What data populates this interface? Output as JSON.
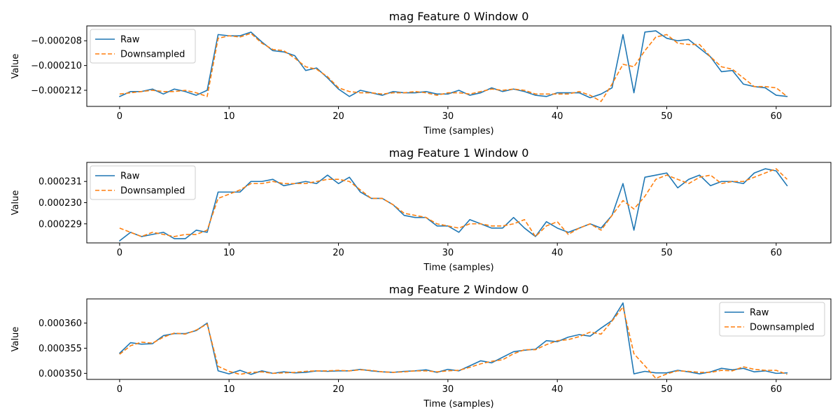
{
  "chart_data": [
    {
      "type": "line",
      "title": "mag Feature 0 Window 0",
      "xlabel": "Time (samples)",
      "ylabel": "Value",
      "xlim": [
        -3,
        65
      ],
      "ylim": [
        -0.0002133,
        -0.0002068
      ],
      "xticks": [
        0,
        10,
        20,
        30,
        40,
        50,
        60
      ],
      "xtick_labels": [
        "0",
        "10",
        "20",
        "30",
        "40",
        "50",
        "60"
      ],
      "yticks": [
        -0.000212,
        -0.00021,
        -0.000208
      ],
      "ytick_labels": [
        "−0.000212",
        "−0.000210",
        "−0.000208"
      ],
      "legend_position": "upper-left",
      "series": [
        {
          "name": "Raw",
          "color": "#1f77b4",
          "dash": "solid",
          "values": [
            -0.0002125,
            -0.0002121,
            -0.0002121,
            -0.0002119,
            -0.0002123,
            -0.0002119,
            -0.0002121,
            -0.0002124,
            -0.000212,
            -0.0002075,
            -0.0002076,
            -0.0002076,
            -0.0002073,
            -0.0002081,
            -0.0002088,
            -0.0002089,
            -0.0002092,
            -0.0002104,
            -0.0002102,
            -0.000211,
            -0.0002119,
            -0.0002125,
            -0.000212,
            -0.0002122,
            -0.0002124,
            -0.0002121,
            -0.0002122,
            -0.0002122,
            -0.0002121,
            -0.0002123,
            -0.0002123,
            -0.000212,
            -0.0002124,
            -0.0002122,
            -0.0002118,
            -0.0002121,
            -0.0002119,
            -0.0002121,
            -0.0002124,
            -0.0002125,
            -0.0002122,
            -0.0002122,
            -0.0002122,
            -0.0002126,
            -0.0002123,
            -0.0002118,
            -0.0002075,
            -0.0002122,
            -0.0002073,
            -0.0002072,
            -0.0002078,
            -0.000208,
            -0.0002079,
            -0.0002086,
            -0.0002093,
            -0.0002105,
            -0.0002104,
            -0.0002115,
            -0.0002117,
            -0.0002118,
            -0.0002124,
            -0.0002125
          ]
        },
        {
          "name": "Downsampled",
          "color": "#ff7f0e",
          "dash": "dashed",
          "values": [
            -0.0002123,
            -0.0002122,
            -0.0002121,
            -0.000212,
            -0.0002121,
            -0.0002121,
            -0.000212,
            -0.0002122,
            -0.0002125,
            -0.0002078,
            -0.0002076,
            -0.0002077,
            -0.0002074,
            -0.0002082,
            -0.0002087,
            -0.0002088,
            -0.0002094,
            -0.0002101,
            -0.0002103,
            -0.0002109,
            -0.0002118,
            -0.0002121,
            -0.0002122,
            -0.0002122,
            -0.0002123,
            -0.0002122,
            -0.0002122,
            -0.0002121,
            -0.0002122,
            -0.0002124,
            -0.0002122,
            -0.0002122,
            -0.0002123,
            -0.0002121,
            -0.0002119,
            -0.000212,
            -0.0002119,
            -0.000212,
            -0.0002123,
            -0.0002123,
            -0.0002123,
            -0.0002123,
            -0.0002121,
            -0.0002124,
            -0.0002129,
            -0.0002115,
            -0.0002099,
            -0.0002101,
            -0.0002088,
            -0.0002077,
            -0.0002075,
            -0.0002082,
            -0.0002083,
            -0.0002083,
            -0.0002093,
            -0.0002101,
            -0.0002103,
            -0.000211,
            -0.0002117,
            -0.0002117,
            -0.0002118,
            -0.0002125
          ]
        }
      ]
    },
    {
      "type": "line",
      "title": "mag Feature 1 Window 0",
      "xlabel": "Time (samples)",
      "ylabel": "Value",
      "xlim": [
        -3,
        65
      ],
      "ylim": [
        0.0002281,
        0.0002319
      ],
      "xticks": [
        0,
        10,
        20,
        30,
        40,
        50,
        60
      ],
      "xtick_labels": [
        "0",
        "10",
        "20",
        "30",
        "40",
        "50",
        "60"
      ],
      "yticks": [
        0.000229,
        0.00023,
        0.000231
      ],
      "ytick_labels": [
        "0.000229",
        "0.000230",
        "0.000231"
      ],
      "legend_position": "upper-left",
      "series": [
        {
          "name": "Raw",
          "color": "#1f77b4",
          "dash": "solid",
          "values": [
            0.0002282,
            0.0002286,
            0.0002284,
            0.0002285,
            0.0002286,
            0.0002283,
            0.0002283,
            0.0002287,
            0.0002286,
            0.0002305,
            0.0002305,
            0.0002305,
            0.000231,
            0.000231,
            0.0002311,
            0.0002308,
            0.0002309,
            0.000231,
            0.0002309,
            0.0002313,
            0.0002309,
            0.0002312,
            0.0002305,
            0.0002302,
            0.0002302,
            0.0002299,
            0.0002294,
            0.0002293,
            0.0002293,
            0.0002289,
            0.0002289,
            0.0002286,
            0.0002292,
            0.000229,
            0.0002288,
            0.0002288,
            0.0002293,
            0.0002288,
            0.0002284,
            0.0002291,
            0.0002288,
            0.0002286,
            0.0002288,
            0.000229,
            0.0002288,
            0.0002294,
            0.0002309,
            0.0002287,
            0.0002312,
            0.0002313,
            0.0002314,
            0.0002307,
            0.0002311,
            0.0002313,
            0.0002308,
            0.000231,
            0.000231,
            0.0002309,
            0.0002314,
            0.0002316,
            0.0002315,
            0.0002308
          ]
        },
        {
          "name": "Downsampled",
          "color": "#ff7f0e",
          "dash": "dashed",
          "values": [
            0.0002288,
            0.0002286,
            0.0002284,
            0.0002286,
            0.0002285,
            0.0002284,
            0.0002285,
            0.0002285,
            0.0002287,
            0.0002302,
            0.0002304,
            0.0002306,
            0.0002309,
            0.0002309,
            0.000231,
            0.0002309,
            0.0002309,
            0.0002309,
            0.000231,
            0.0002311,
            0.0002311,
            0.000231,
            0.0002306,
            0.0002302,
            0.0002302,
            0.0002299,
            0.0002295,
            0.0002294,
            0.0002293,
            0.000229,
            0.0002289,
            0.0002288,
            0.000229,
            0.000229,
            0.0002289,
            0.0002289,
            0.000229,
            0.0002292,
            0.0002284,
            0.0002289,
            0.0002291,
            0.0002285,
            0.0002288,
            0.000229,
            0.0002287,
            0.0002294,
            0.0002301,
            0.0002297,
            0.0002303,
            0.0002311,
            0.0002313,
            0.0002311,
            0.0002309,
            0.0002312,
            0.0002313,
            0.0002309,
            0.000231,
            0.000231,
            0.0002312,
            0.0002314,
            0.0002316,
            0.0002311
          ]
        }
      ]
    },
    {
      "type": "line",
      "title": "mag Feature 2 Window 0",
      "xlabel": "Time (samples)",
      "ylabel": "Value",
      "xlim": [
        -3,
        65
      ],
      "ylim": [
        0.0003488,
        0.0003648
      ],
      "xticks": [
        0,
        10,
        20,
        30,
        40,
        50,
        60
      ],
      "xtick_labels": [
        "0",
        "10",
        "20",
        "30",
        "40",
        "50",
        "60"
      ],
      "yticks": [
        0.00035,
        0.000355,
        0.00036
      ],
      "ytick_labels": [
        "0.000350",
        "0.000355",
        "0.000360"
      ],
      "legend_position": "upper-right",
      "series": [
        {
          "name": "Raw",
          "color": "#1f77b4",
          "dash": "solid",
          "values": [
            0.000354,
            0.0003561,
            0.0003558,
            0.0003559,
            0.0003575,
            0.0003579,
            0.0003579,
            0.0003585,
            0.00036,
            0.0003505,
            0.0003499,
            0.0003506,
            0.0003498,
            0.0003505,
            0.00035,
            0.0003503,
            0.0003501,
            0.0003502,
            0.0003505,
            0.0003504,
            0.0003505,
            0.0003505,
            0.0003508,
            0.0003505,
            0.0003503,
            0.0003502,
            0.0003504,
            0.0003505,
            0.0003507,
            0.0003502,
            0.0003508,
            0.0003505,
            0.0003515,
            0.0003525,
            0.0003521,
            0.0003532,
            0.0003543,
            0.0003546,
            0.0003548,
            0.0003565,
            0.0003563,
            0.0003572,
            0.0003577,
            0.0003574,
            0.000359,
            0.0003605,
            0.000364,
            0.0003499,
            0.0003504,
            0.0003501,
            0.0003501,
            0.0003506,
            0.0003503,
            0.0003499,
            0.0003503,
            0.000351,
            0.0003507,
            0.000351,
            0.0003503,
            0.0003505,
            0.00035,
            0.0003501
          ]
        },
        {
          "name": "Downsampled",
          "color": "#ff7f0e",
          "dash": "dashed",
          "values": [
            0.0003538,
            0.0003555,
            0.0003562,
            0.000356,
            0.0003572,
            0.000358,
            0.0003578,
            0.0003586,
            0.0003598,
            0.0003514,
            0.0003504,
            0.0003498,
            0.0003502,
            0.0003503,
            0.00035,
            0.0003501,
            0.0003502,
            0.0003504,
            0.0003505,
            0.0003505,
            0.0003506,
            0.0003505,
            0.0003507,
            0.0003506,
            0.0003503,
            0.0003502,
            0.0003503,
            0.0003505,
            0.0003505,
            0.0003503,
            0.0003505,
            0.0003506,
            0.0003512,
            0.0003519,
            0.0003524,
            0.0003527,
            0.0003539,
            0.0003547,
            0.0003547,
            0.0003557,
            0.0003565,
            0.0003567,
            0.0003573,
            0.0003582,
            0.0003578,
            0.0003604,
            0.0003632,
            0.0003539,
            0.0003515,
            0.000349,
            0.0003499,
            0.0003505,
            0.0003504,
            0.0003502,
            0.0003502,
            0.0003506,
            0.0003505,
            0.0003513,
            0.0003508,
            0.0003506,
            0.0003506,
            0.0003498
          ]
        }
      ]
    }
  ]
}
